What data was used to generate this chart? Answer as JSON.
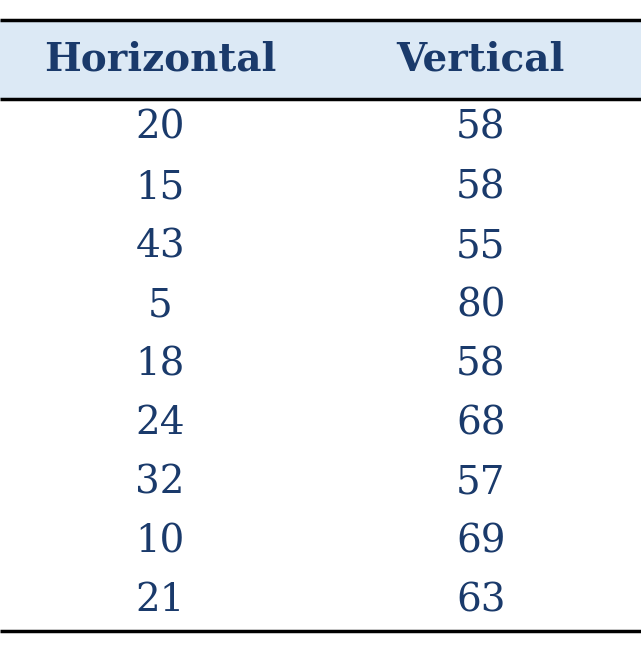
{
  "columns": [
    "Horizontal",
    "Vertical"
  ],
  "rows": [
    [
      "20",
      "58"
    ],
    [
      "15",
      "58"
    ],
    [
      "43",
      "55"
    ],
    [
      "5",
      "80"
    ],
    [
      "18",
      "58"
    ],
    [
      "24",
      "68"
    ],
    [
      "32",
      "57"
    ],
    [
      "10",
      "69"
    ],
    [
      "21",
      "63"
    ]
  ],
  "header_bg_color": "#dce9f5",
  "header_text_color": "#1a3a6b",
  "cell_text_color": "#1a3a6b",
  "bg_color": "#ffffff",
  "header_fontsize": 28,
  "cell_fontsize": 28,
  "header_font_weight": "bold",
  "border_color": "#000000",
  "border_linewidth": 2.5
}
